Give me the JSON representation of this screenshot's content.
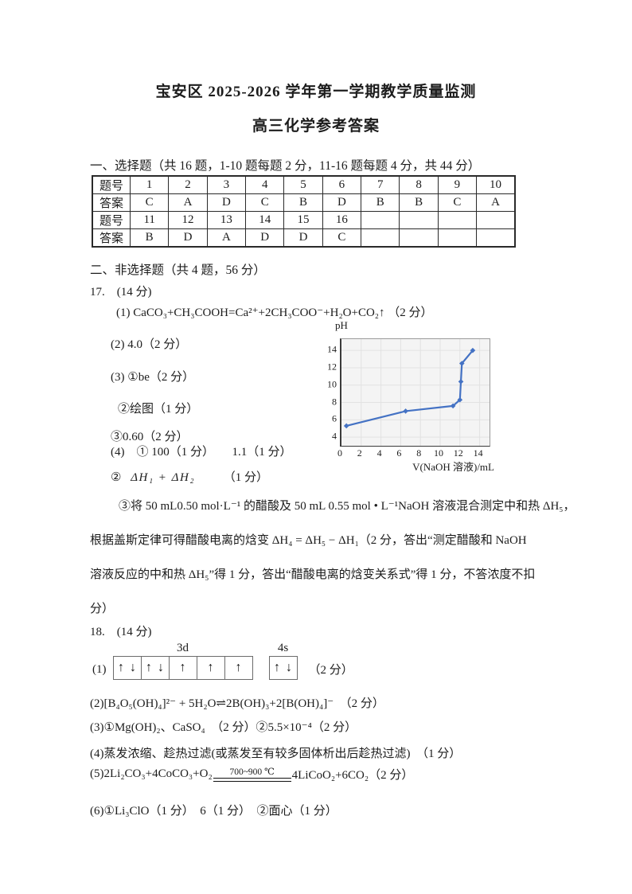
{
  "page": {
    "title": "宝安区 2025-2026 学年第一学期教学质量监测",
    "subtitle": "高三化学参考答案"
  },
  "section1": {
    "heading": "一、选择题（共 16 题，1-10 题每题 2 分，11-16 题每题 4 分，共 44 分）"
  },
  "answer_table": {
    "rows": [
      [
        "题号",
        "1",
        "2",
        "3",
        "4",
        "5",
        "6",
        "7",
        "8",
        "9",
        "10"
      ],
      [
        "答案",
        "C",
        "A",
        "D",
        "C",
        "B",
        "D",
        "B",
        "B",
        "C",
        "A"
      ],
      [
        "题号",
        "11",
        "12",
        "13",
        "14",
        "15",
        "16",
        "",
        "",
        "",
        ""
      ],
      [
        "答案",
        "B",
        "D",
        "A",
        "D",
        "D",
        "C",
        "",
        "",
        "",
        ""
      ]
    ]
  },
  "section2": {
    "heading": "二、非选择题（共 4 题，56 分）"
  },
  "q17": {
    "number": "17.　(14 分)",
    "item1": "(1) CaCO₃+CH₃COOH=Ca²⁺+2CH₃COO⁻+H₂O+CO₂↑ （2 分）",
    "item2": "(2) 4.0（2 分）",
    "item3a": "(3) ①be（2 分）",
    "item3b": "②绘图（1 分）",
    "item3c": "③0.60（2 分）",
    "item4a": "(4)　① 100（1 分）　　1.1（1 分）",
    "item4b_label": "②",
    "item4b_formula": "ΔH₁ + ΔH₂",
    "item4b_score": "（1 分）",
    "item4c_lines": [
      "③将 50 mL0.50 mol·L⁻¹ 的醋酸及 50 mL 0.55 mol • L⁻¹NaOH 溶液混合测定中和热 ΔH₅，",
      "根据盖斯定律可得醋酸电离的焓变 ΔH₄ = ΔH₅ − ΔH₁（2 分，答出“测定醋酸和 NaOH",
      "溶液反应的中和热 ΔH₅”得 1 分，答出“醋酸电离的焓变关系式”得 1 分，不答浓度不扣",
      "分）"
    ]
  },
  "chart_data": {
    "type": "line",
    "title": "",
    "xlabel": "V(NaOH 溶液)/mL",
    "ylabel": "pH",
    "x": [
      0.5,
      6.5,
      11.3,
      12.0,
      12.1,
      12.2,
      13.3
    ],
    "y": [
      5.3,
      7.0,
      7.6,
      8.3,
      10.4,
      12.5,
      14.0
    ],
    "xlim": [
      0,
      15
    ],
    "ylim": [
      3,
      15.3
    ],
    "xticks": [
      0,
      2,
      4,
      6,
      8,
      10,
      12,
      14
    ],
    "yticks": [
      4,
      6,
      8,
      10,
      12,
      14
    ],
    "grid": true,
    "legend": "none",
    "line_color": "#4472c4",
    "plot_bg": "#f4f4f4",
    "grid_color": "#e2e2e2"
  },
  "q18": {
    "number": "18.　(14 分)",
    "item1_label": "(1)",
    "orbital": {
      "d_label": "3d",
      "s_label": "4s",
      "d_boxes": [
        "↑↓",
        "↑↓",
        "↑",
        "↑",
        "↑"
      ],
      "s_boxes": [
        "↑↓"
      ],
      "score": "（2 分）"
    },
    "item2": "(2)[B₄O₅(OH)₄]²⁻ + 5H₂O⇌2B(OH)₃+2[B(OH)₄]⁻　（2 分）",
    "item3": "(3)①Mg(OH)₂、CaSO₄　（2 分）②5.5×10⁻⁴（2 分）",
    "item4": "(4)蒸发浓缩、趁热过滤(或蒸发至有较多固体析出后趁热过滤)　（1 分）",
    "item5": {
      "left": "(5)2Li₂CO₃+4CoCO₃+O₂",
      "condition": "700~900 ℃",
      "right": "4LiCoO₂+6CO₂（2 分）"
    },
    "item6": "(6)①Li₃ClO（1 分）　6（1 分）　②面心（1 分）"
  }
}
